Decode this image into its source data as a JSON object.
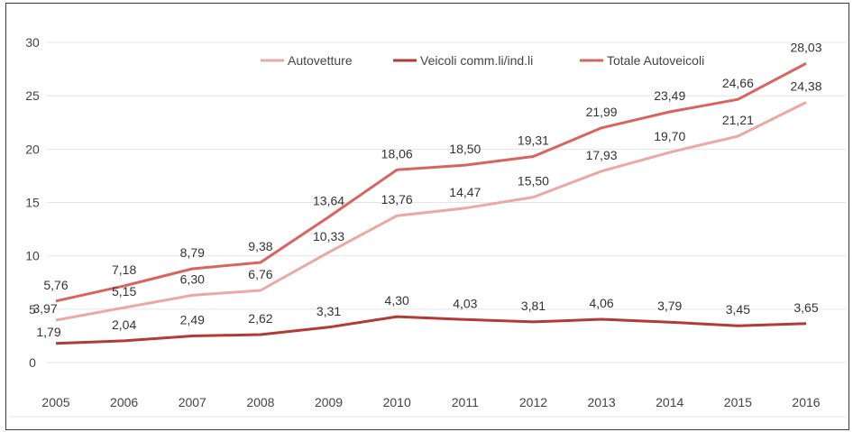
{
  "chart_data": {
    "type": "line",
    "title": "",
    "xlabel": "",
    "ylabel": "",
    "x": [
      "2005",
      "2006",
      "2007",
      "2008",
      "2009",
      "2010",
      "2011",
      "2012",
      "2013",
      "2014",
      "2015",
      "2016"
    ],
    "ylim": [
      0,
      30
    ],
    "yticks": [
      0,
      5,
      10,
      15,
      20,
      25,
      30
    ],
    "grid": true,
    "legend_position": "top-right",
    "series": [
      {
        "name": "Autovetture",
        "color": "#eaa9a3",
        "values": [
          3.97,
          5.15,
          6.3,
          6.76,
          10.33,
          13.76,
          14.47,
          15.5,
          17.93,
          19.7,
          21.21,
          24.38
        ],
        "labels": [
          "3,97",
          "5,15",
          "6,30",
          "6,76",
          "10,33",
          "13,76",
          "14,47",
          "15,50",
          "17,93",
          "19,70",
          "21,21",
          "24,38"
        ]
      },
      {
        "name": "Veicoli comm.li/ind.li",
        "color": "#b23b36",
        "values": [
          1.79,
          2.04,
          2.49,
          2.62,
          3.31,
          4.3,
          4.03,
          3.81,
          4.06,
          3.79,
          3.45,
          3.65
        ],
        "labels": [
          "1,79",
          "2,04",
          "2,49",
          "2,62",
          "3,31",
          "4,30",
          "4,03",
          "3,81",
          "4,06",
          "3,79",
          "3,45",
          "3,65"
        ]
      },
      {
        "name": "Totale Autoveicoli",
        "color": "#d9645e",
        "values": [
          5.76,
          7.18,
          8.79,
          9.38,
          13.64,
          18.06,
          18.5,
          19.31,
          21.99,
          23.49,
          24.66,
          28.03
        ],
        "labels": [
          "5,76",
          "7,18",
          "8,79",
          "9,38",
          "13,64",
          "18,06",
          "18,50",
          "19,31",
          "21,99",
          "23,49",
          "24,66",
          "28,03"
        ]
      }
    ]
  }
}
